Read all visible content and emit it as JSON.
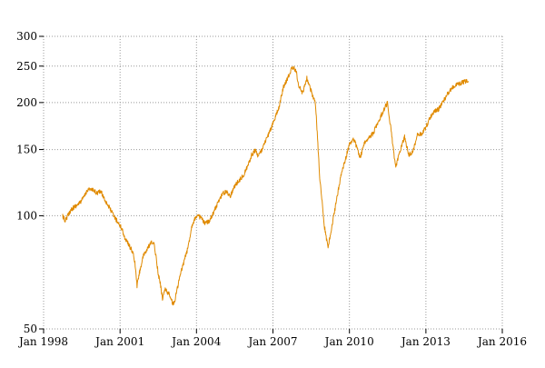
{
  "chart_data": {
    "type": "line",
    "title": "",
    "xlabel": "",
    "ylabel": "",
    "y_scale": "log",
    "grid": true,
    "legend": "none",
    "xlim": [
      "1998-01-01",
      "2016-01-01"
    ],
    "ylim": [
      50,
      300
    ],
    "x_ticks": [
      {
        "date": "1998-01-01",
        "label": "Jan 1998"
      },
      {
        "date": "2001-01-01",
        "label": "Jan 2001"
      },
      {
        "date": "2004-01-01",
        "label": "Jan 2004"
      },
      {
        "date": "2007-01-01",
        "label": "Jan 2007"
      },
      {
        "date": "2010-01-01",
        "label": "Jan 2010"
      },
      {
        "date": "2013-01-01",
        "label": "Jan 2013"
      },
      {
        "date": "2016-01-01",
        "label": "Jan 2016"
      }
    ],
    "y_ticks": [
      {
        "value": 50,
        "label": "50"
      },
      {
        "value": 100,
        "label": "100"
      },
      {
        "value": 150,
        "label": "150"
      },
      {
        "value": 200,
        "label": "200"
      },
      {
        "value": 250,
        "label": "250"
      },
      {
        "value": 300,
        "label": "300"
      }
    ],
    "series": [
      {
        "color": "#e08a00",
        "points": [
          [
            "1998-10-01",
            100
          ],
          [
            "1998-11-01",
            97
          ],
          [
            "1998-12-01",
            99
          ],
          [
            "1999-02-01",
            104
          ],
          [
            "1999-04-01",
            106
          ],
          [
            "1999-06-01",
            108
          ],
          [
            "1999-08-01",
            112
          ],
          [
            "1999-10-01",
            118
          ],
          [
            "1999-12-01",
            117
          ],
          [
            "2000-02-01",
            115
          ],
          [
            "2000-04-01",
            116
          ],
          [
            "2000-06-01",
            110
          ],
          [
            "2000-08-01",
            105
          ],
          [
            "2000-10-01",
            100
          ],
          [
            "2000-12-01",
            96
          ],
          [
            "2001-02-01",
            92
          ],
          [
            "2001-03-01",
            88
          ],
          [
            "2001-05-01",
            84
          ],
          [
            "2001-07-01",
            80
          ],
          [
            "2001-08-01",
            75
          ],
          [
            "2001-09-01",
            65
          ],
          [
            "2001-10-01",
            70
          ],
          [
            "2001-12-01",
            78
          ],
          [
            "2002-02-01",
            82
          ],
          [
            "2002-04-01",
            85
          ],
          [
            "2002-05-01",
            84
          ],
          [
            "2002-06-01",
            78
          ],
          [
            "2002-07-01",
            70
          ],
          [
            "2002-08-01",
            66
          ],
          [
            "2002-09-01",
            60
          ],
          [
            "2002-10-01",
            64
          ],
          [
            "2002-12-01",
            62
          ],
          [
            "2003-02-01",
            58
          ],
          [
            "2003-03-01",
            60
          ],
          [
            "2003-05-01",
            68
          ],
          [
            "2003-07-01",
            75
          ],
          [
            "2003-09-01",
            82
          ],
          [
            "2003-11-01",
            95
          ],
          [
            "2004-01-01",
            100
          ],
          [
            "2004-03-01",
            99
          ],
          [
            "2004-05-01",
            95
          ],
          [
            "2004-07-01",
            97
          ],
          [
            "2004-09-01",
            102
          ],
          [
            "2004-11-01",
            108
          ],
          [
            "2005-01-01",
            114
          ],
          [
            "2005-03-01",
            116
          ],
          [
            "2005-05-01",
            113
          ],
          [
            "2005-07-01",
            120
          ],
          [
            "2005-09-01",
            124
          ],
          [
            "2005-11-01",
            128
          ],
          [
            "2006-01-01",
            135
          ],
          [
            "2006-03-01",
            145
          ],
          [
            "2006-05-01",
            150
          ],
          [
            "2006-06-01",
            144
          ],
          [
            "2006-08-01",
            150
          ],
          [
            "2006-10-01",
            160
          ],
          [
            "2006-12-01",
            170
          ],
          [
            "2007-02-01",
            182
          ],
          [
            "2007-04-01",
            195
          ],
          [
            "2007-06-01",
            220
          ],
          [
            "2007-08-01",
            232
          ],
          [
            "2007-10-01",
            248
          ],
          [
            "2007-12-01",
            243
          ],
          [
            "2008-01-01",
            222
          ],
          [
            "2008-03-01",
            212
          ],
          [
            "2008-05-01",
            232
          ],
          [
            "2008-07-01",
            215
          ],
          [
            "2008-09-01",
            198
          ],
          [
            "2008-10-01",
            160
          ],
          [
            "2008-11-01",
            125
          ],
          [
            "2008-12-01",
            112
          ],
          [
            "2009-01-01",
            95
          ],
          [
            "2009-02-01",
            88
          ],
          [
            "2009-03-01",
            82
          ],
          [
            "2009-05-01",
            95
          ],
          [
            "2009-07-01",
            110
          ],
          [
            "2009-09-01",
            128
          ],
          [
            "2009-11-01",
            140
          ],
          [
            "2010-01-01",
            155
          ],
          [
            "2010-03-01",
            160
          ],
          [
            "2010-05-01",
            150
          ],
          [
            "2010-06-01",
            142
          ],
          [
            "2010-08-01",
            155
          ],
          [
            "2010-10-01",
            162
          ],
          [
            "2010-12-01",
            165
          ],
          [
            "2011-02-01",
            175
          ],
          [
            "2011-04-01",
            185
          ],
          [
            "2011-06-01",
            195
          ],
          [
            "2011-07-01",
            200
          ],
          [
            "2011-08-01",
            180
          ],
          [
            "2011-10-01",
            145
          ],
          [
            "2011-11-01",
            135
          ],
          [
            "2012-01-01",
            150
          ],
          [
            "2012-03-01",
            162
          ],
          [
            "2012-05-01",
            145
          ],
          [
            "2012-07-01",
            148
          ],
          [
            "2012-09-01",
            165
          ],
          [
            "2012-11-01",
            165
          ],
          [
            "2013-01-01",
            172
          ],
          [
            "2013-03-01",
            182
          ],
          [
            "2013-05-01",
            190
          ],
          [
            "2013-07-01",
            192
          ],
          [
            "2013-09-01",
            200
          ],
          [
            "2013-11-01",
            210
          ],
          [
            "2014-01-01",
            218
          ],
          [
            "2014-03-01",
            222
          ],
          [
            "2014-05-01",
            225
          ],
          [
            "2014-07-01",
            227
          ],
          [
            "2014-09-01",
            228
          ]
        ]
      }
    ]
  }
}
